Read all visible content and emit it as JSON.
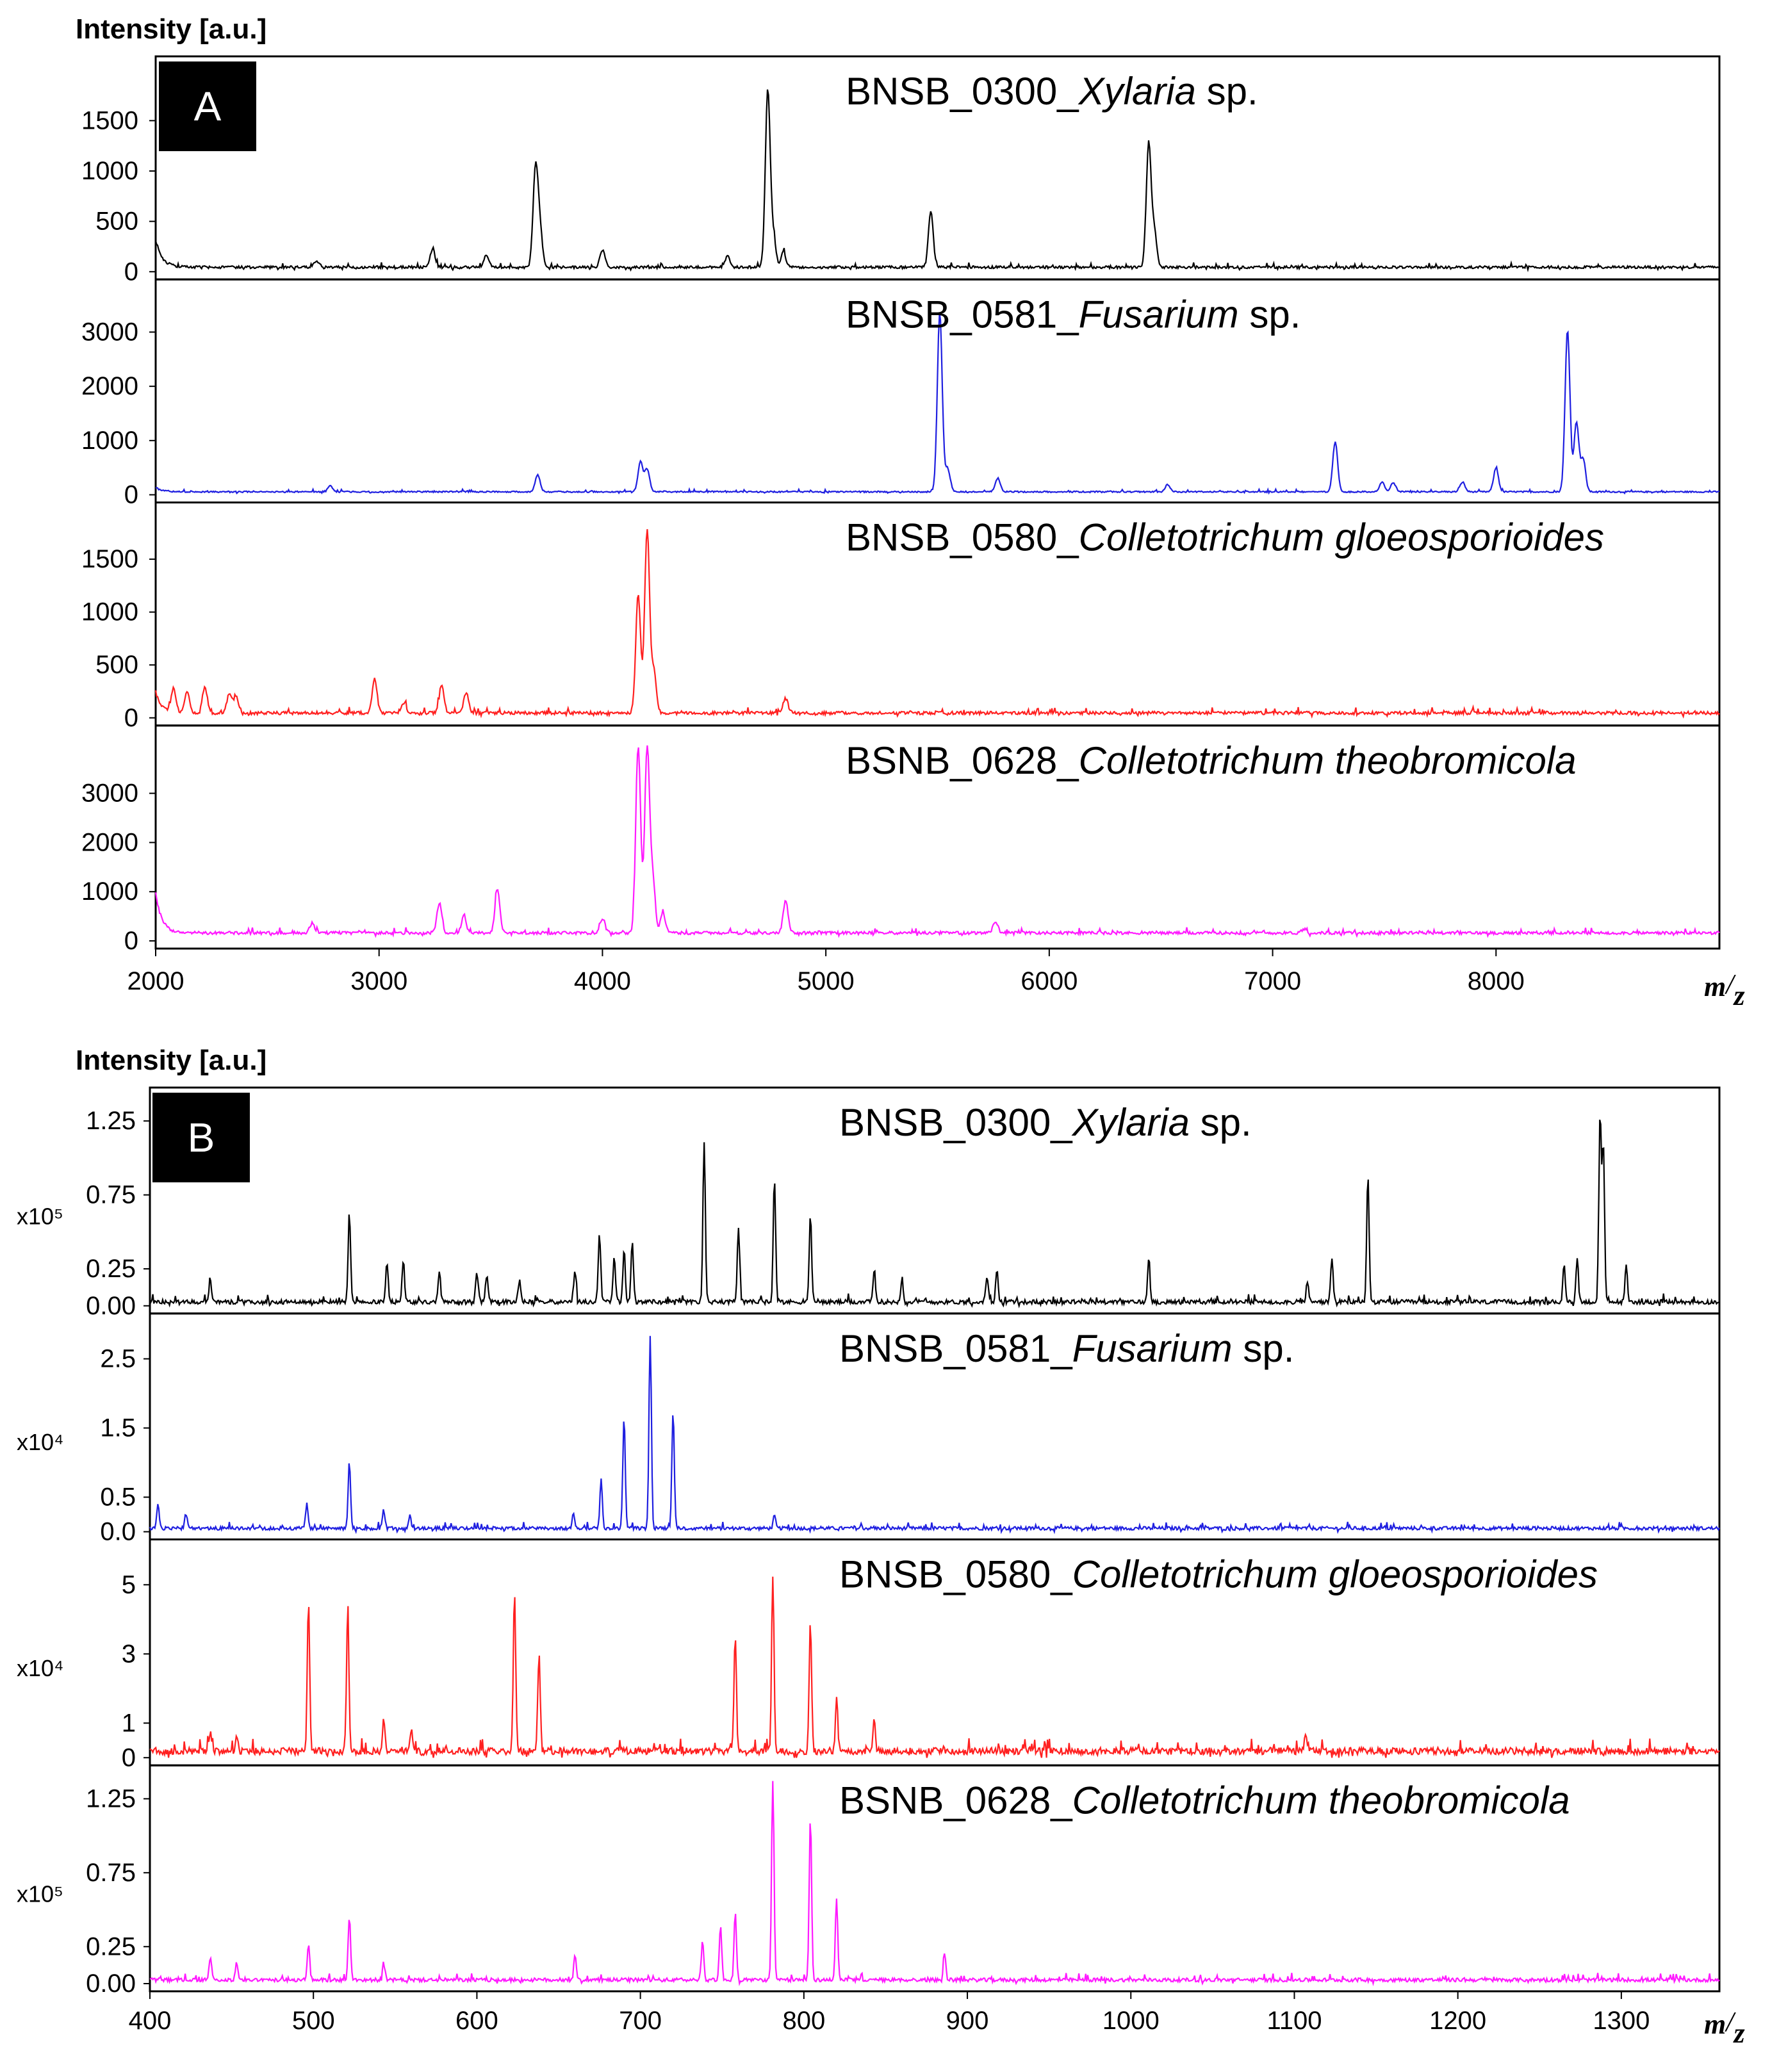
{
  "chart_data": [
    {
      "type": "line",
      "panel_label": "A",
      "ylabel": "Intensity [a.u.]",
      "x_unit_num": "m",
      "x_unit_den": "z",
      "xlim": [
        2000,
        9000
      ],
      "x_ticks": [
        2000,
        3000,
        4000,
        5000,
        6000,
        7000,
        8000
      ],
      "x_tick_labels": [
        "2000",
        "3000",
        "4000",
        "5000",
        "6000",
        "7000",
        "8000"
      ],
      "series": [
        {
          "prefix": "BNSB_0300_",
          "genus": "Xylaria",
          "suffix": " sp.",
          "color": "#000000",
          "ylim": [
            0,
            2100
          ],
          "y_ticks": [
            0,
            500,
            1000,
            1500
          ],
          "y_tick_labels": [
            "0",
            "500",
            "1000",
            "1500"
          ],
          "baseline": 40,
          "noise": 25,
          "start_tail": 280,
          "peaks": [
            [
              3700,
              960
            ],
            [
              3720,
              380
            ],
            [
              4000,
              170
            ],
            [
              3240,
              180
            ],
            [
              3480,
              120
            ],
            [
              4560,
              110
            ],
            [
              4740,
              1750
            ],
            [
              4765,
              290
            ],
            [
              4810,
              150
            ],
            [
              5470,
              560
            ],
            [
              6445,
              1210
            ],
            [
              6470,
              360
            ],
            [
              2720,
              60
            ]
          ]
        },
        {
          "prefix": "BNSB_0581_",
          "genus": "Fusarium",
          "suffix": " sp.",
          "color": "#1f1fe0",
          "ylim": [
            0,
            3900
          ],
          "y_ticks": [
            0,
            1000,
            2000,
            3000
          ],
          "y_tick_labels": [
            "0",
            "1000",
            "2000",
            "3000"
          ],
          "baseline": 50,
          "noise": 25,
          "start_tail": 80,
          "peaks": [
            [
              3710,
              320
            ],
            [
              4170,
              550
            ],
            [
              4200,
              420
            ],
            [
              5510,
              3300
            ],
            [
              5545,
              430
            ],
            [
              5770,
              250
            ],
            [
              6530,
              130
            ],
            [
              7280,
              920
            ],
            [
              7490,
              180
            ],
            [
              7540,
              170
            ],
            [
              7850,
              180
            ],
            [
              8000,
              440
            ],
            [
              8320,
              2980
            ],
            [
              8360,
              1280
            ],
            [
              8390,
              600
            ],
            [
              2780,
              110
            ]
          ]
        },
        {
          "prefix": "BNSB_0580_",
          "genus": "Colletotrichum gloeosporioides",
          "suffix": "",
          "color": "#ff2020",
          "ylim": [
            0,
            2000
          ],
          "y_ticks": [
            0,
            500,
            1000,
            1500
          ],
          "y_tick_labels": [
            "0",
            "500",
            "1000",
            "1500"
          ],
          "baseline": 40,
          "noise": 30,
          "start_tail": 200,
          "peaks": [
            [
              2080,
              220
            ],
            [
              2140,
              200
            ],
            [
              2220,
              240
            ],
            [
              2330,
              180
            ],
            [
              2360,
              160
            ],
            [
              2980,
              320
            ],
            [
              3110,
              100
            ],
            [
              3280,
              250
            ],
            [
              3390,
              190
            ],
            [
              4160,
              1120
            ],
            [
              4200,
              1740
            ],
            [
              4230,
              400
            ],
            [
              4820,
              140
            ]
          ]
        },
        {
          "prefix": "BSNB_0628_",
          "genus": "Colletotrichum theobromicola",
          "suffix": "",
          "color": "#ff1aff",
          "ylim": [
            0,
            4300
          ],
          "y_ticks": [
            0,
            1000,
            2000,
            3000
          ],
          "y_tick_labels": [
            "0",
            "1000",
            "2000",
            "3000"
          ],
          "baseline": 150,
          "noise": 60,
          "start_tail": 800,
          "peaks": [
            [
              2700,
              200
            ],
            [
              3270,
              600
            ],
            [
              3380,
              350
            ],
            [
              3530,
              900
            ],
            [
              4000,
              300
            ],
            [
              4160,
              3800
            ],
            [
              4200,
              3750
            ],
            [
              4225,
              1100
            ],
            [
              4270,
              400
            ],
            [
              4820,
              650
            ],
            [
              5760,
              230
            ],
            [
              7140,
              80
            ]
          ]
        }
      ]
    },
    {
      "type": "line",
      "panel_label": "B",
      "ylabel": "Intensity [a.u.]",
      "x_unit_num": "m",
      "x_unit_den": "z",
      "xlim": [
        400,
        1360
      ],
      "x_ticks": [
        400,
        500,
        600,
        700,
        800,
        900,
        1000,
        1100,
        1200,
        1300
      ],
      "x_tick_labels": [
        "400",
        "500",
        "600",
        "700",
        "800",
        "900",
        "1000",
        "1100",
        "1200",
        "1300"
      ],
      "series": [
        {
          "prefix": "BNSB_0300_",
          "genus": "Xylaria",
          "suffix": " sp.",
          "color": "#000000",
          "scale_label": "x10⁵",
          "ylim": [
            0,
            1.45
          ],
          "y_ticks": [
            0,
            0.25,
            0.75,
            1.25
          ],
          "y_tick_labels": [
            "0.00",
            "0.25",
            "0.75",
            "1.25"
          ],
          "baseline": 0.02,
          "noise": 0.03,
          "peaks": [
            [
              437,
              0.14
            ],
            [
              522,
              0.6
            ],
            [
              545,
              0.26
            ],
            [
              555,
              0.26
            ],
            [
              577,
              0.21
            ],
            [
              600,
              0.2
            ],
            [
              606,
              0.18
            ],
            [
              626,
              0.15
            ],
            [
              660,
              0.2
            ],
            [
              675,
              0.46
            ],
            [
              684,
              0.3
            ],
            [
              690,
              0.36
            ],
            [
              695,
              0.4
            ],
            [
              739,
              1.07
            ],
            [
              760,
              0.5
            ],
            [
              782,
              0.82
            ],
            [
              804,
              0.58
            ],
            [
              843,
              0.2
            ],
            [
              860,
              0.16
            ],
            [
              912,
              0.18
            ],
            [
              918,
              0.22
            ],
            [
              1011,
              0.3
            ],
            [
              1108,
              0.14
            ],
            [
              1123,
              0.3
            ],
            [
              1145,
              0.85
            ],
            [
              1265,
              0.24
            ],
            [
              1273,
              0.3
            ],
            [
              1287,
              1.25
            ],
            [
              1289,
              1.05
            ],
            [
              1303,
              0.24
            ]
          ]
        },
        {
          "prefix": "BNSB_0581_",
          "genus": "Fusarium",
          "suffix": " sp.",
          "color": "#1f1fe0",
          "scale_label": "x10⁴",
          "ylim": [
            0,
            3.1
          ],
          "y_ticks": [
            0,
            0.5,
            1.5,
            2.5
          ],
          "y_tick_labels": [
            "0.0",
            "0.5",
            "1.5",
            "2.5"
          ],
          "baseline": 0.04,
          "noise": 0.05,
          "peaks": [
            [
              405,
              0.35
            ],
            [
              422,
              0.2
            ],
            [
              496,
              0.35
            ],
            [
              522,
              0.95
            ],
            [
              543,
              0.3
            ],
            [
              559,
              0.18
            ],
            [
              659,
              0.2
            ],
            [
              676,
              0.7
            ],
            [
              690,
              1.6
            ],
            [
              706,
              2.8
            ],
            [
              720,
              1.7
            ],
            [
              782,
              0.18
            ]
          ]
        },
        {
          "prefix": "BNSB_0580_",
          "genus": "Colletotrichum gloeosporioides",
          "suffix": "",
          "color": "#ff2020",
          "scale_label": "x10⁴",
          "ylim": [
            0,
            6.2
          ],
          "y_ticks": [
            0,
            1,
            3,
            5
          ],
          "y_tick_labels": [
            "0",
            "1",
            "3",
            "5"
          ],
          "baseline": 0.15,
          "noise": 0.2,
          "peaks": [
            [
              437,
              0.6
            ],
            [
              453,
              0.5
            ],
            [
              497,
              4.3
            ],
            [
              521,
              4.1
            ],
            [
              543,
              0.9
            ],
            [
              560,
              0.6
            ],
            [
              623,
              4.6
            ],
            [
              638,
              2.8
            ],
            [
              758,
              3.4
            ],
            [
              781,
              5.0
            ],
            [
              804,
              3.7
            ],
            [
              820,
              1.5
            ],
            [
              843,
              0.9
            ],
            [
              1107,
              0.5
            ]
          ]
        },
        {
          "prefix": "BSNB_0628_",
          "genus": "Colletotrichum theobromicola",
          "suffix": "",
          "color": "#ff1aff",
          "scale_label": "x10⁵",
          "ylim": [
            0,
            1.45
          ],
          "y_ticks": [
            0,
            0.25,
            0.75,
            1.25
          ],
          "y_tick_labels": [
            "0.00",
            "0.25",
            "0.75",
            "1.25"
          ],
          "baseline": 0.02,
          "noise": 0.025,
          "peaks": [
            [
              437,
              0.16
            ],
            [
              453,
              0.12
            ],
            [
              497,
              0.24
            ],
            [
              522,
              0.43
            ],
            [
              543,
              0.12
            ],
            [
              660,
              0.16
            ],
            [
              738,
              0.27
            ],
            [
              749,
              0.36
            ],
            [
              758,
              0.45
            ],
            [
              781,
              1.35
            ],
            [
              804,
              1.1
            ],
            [
              820,
              0.55
            ],
            [
              886,
              0.2
            ]
          ]
        }
      ]
    }
  ]
}
